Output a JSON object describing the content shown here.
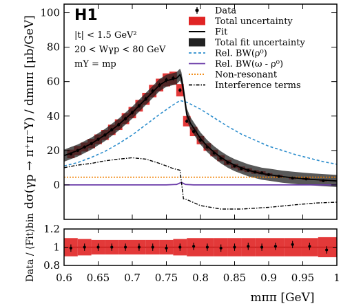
{
  "colors": {
    "data": "#000000",
    "total_uncertainty": "#e02424",
    "fit": "#000000",
    "fit_uncertainty": "#000000",
    "rho_bw": "#2a8ccc",
    "omega_rho_bw": "#6a3aa8",
    "non_resonant": "#f08000",
    "interference": "#000000"
  },
  "labels": {
    "experiment": "H1",
    "cut_t": "|t| < 1.5 GeV²",
    "cut_w": "20 < Wγp < 80 GeV",
    "cut_my": "mY = mp",
    "ylabel_top": "dσ(γp → π⁺π⁻Y) / dmππ  [μb/GeV]",
    "ylabel_bottom": "Data / ⟨Fit⟩bin",
    "xlabel": "mππ  [GeV]"
  },
  "chart_data": [
    {
      "type": "line",
      "panel": "main",
      "xlim": [
        0.6,
        1.0
      ],
      "ylim": [
        -20,
        105
      ],
      "xticks": [
        "0.6",
        "0.65",
        "0.7",
        "0.75",
        "0.8",
        "0.85",
        "0.9",
        "0.95",
        "1"
      ],
      "yticks": [
        "0",
        "20",
        "40",
        "60",
        "80",
        "100"
      ],
      "ytick_values": [
        0,
        20,
        40,
        60,
        80,
        100
      ],
      "legend_position": "top-right",
      "legend": [
        "Data",
        "Total uncertainty",
        "Fit",
        "Total fit uncertainty",
        "Rel. BW(ρ⁰)",
        "Rel. BW(ω - ρ⁰)",
        "Non-resonant",
        "Interference terms"
      ],
      "series": [
        {
          "name": "Data",
          "x": [
            0.61,
            0.62,
            0.63,
            0.64,
            0.65,
            0.66,
            0.67,
            0.68,
            0.69,
            0.7,
            0.71,
            0.72,
            0.73,
            0.74,
            0.75,
            0.76,
            0.77,
            0.78,
            0.79,
            0.8,
            0.81,
            0.82,
            0.83,
            0.84,
            0.85,
            0.86,
            0.87,
            0.88,
            0.89,
            0.9,
            0.915,
            0.935,
            0.955,
            0.98
          ],
          "y": [
            18,
            20,
            22,
            24,
            26.5,
            29,
            32,
            35,
            38.5,
            42,
            46,
            50,
            54.5,
            58,
            61,
            62,
            55,
            37,
            31,
            26,
            22,
            18.5,
            15.5,
            13,
            11,
            9.5,
            8.5,
            7.5,
            7,
            6,
            5,
            4,
            3.5,
            2.5
          ],
          "total_uncertainty": [
            2.5,
            2.6,
            2.6,
            2.7,
            2.8,
            2.9,
            3.0,
            3.1,
            3.2,
            3.3,
            3.4,
            3.5,
            3.6,
            3.7,
            3.8,
            3.8,
            3.6,
            3.0,
            2.7,
            2.4,
            2.2,
            1.9,
            1.7,
            1.5,
            1.3,
            1.2,
            1.1,
            1.0,
            0.9,
            0.8,
            0.8,
            0.7,
            0.7,
            0.6
          ]
        },
        {
          "name": "Fit",
          "x": [
            0.6,
            0.61,
            0.62,
            0.63,
            0.64,
            0.65,
            0.66,
            0.67,
            0.68,
            0.69,
            0.7,
            0.71,
            0.72,
            0.73,
            0.74,
            0.75,
            0.76,
            0.765,
            0.77,
            0.772,
            0.775,
            0.78,
            0.785,
            0.79,
            0.8,
            0.81,
            0.82,
            0.83,
            0.84,
            0.85,
            0.86,
            0.87,
            0.88,
            0.89,
            0.9,
            0.92,
            0.94,
            0.96,
            0.98,
            1.0
          ],
          "y": [
            17,
            18.5,
            20,
            22,
            24,
            26.5,
            29,
            32,
            35,
            38.5,
            42,
            46,
            50,
            54,
            58,
            60.5,
            61.5,
            62,
            64,
            62,
            55,
            41,
            36,
            33,
            27,
            22.5,
            19,
            16,
            13.5,
            11.5,
            10,
            8.5,
            7.5,
            6.5,
            6,
            4.8,
            4,
            3.3,
            2.8,
            2.3
          ],
          "band": 3.5
        },
        {
          "name": "Rel. BW(ρ⁰)",
          "x": [
            0.6,
            0.62,
            0.64,
            0.66,
            0.68,
            0.7,
            0.72,
            0.74,
            0.76,
            0.77,
            0.78,
            0.8,
            0.82,
            0.84,
            0.86,
            0.88,
            0.9,
            0.92,
            0.94,
            0.96,
            0.98,
            1.0
          ],
          "y": [
            11,
            13,
            16,
            19.5,
            24,
            29,
            35,
            41,
            46.5,
            49,
            48,
            44,
            39,
            34,
            29.5,
            26,
            22.5,
            20,
            17.5,
            15.5,
            13.5,
            12
          ]
        },
        {
          "name": "Rel. BW(ω - ρ⁰)",
          "x": [
            0.6,
            0.75,
            0.765,
            0.772,
            0.778,
            0.79,
            1.0
          ],
          "y": [
            0,
            0,
            0.3,
            1.5,
            0.3,
            0,
            0
          ]
        },
        {
          "name": "Non-resonant",
          "x": [
            0.6,
            1.0
          ],
          "y": [
            4.5,
            4.5
          ]
        },
        {
          "name": "Interference terms",
          "x": [
            0.6,
            0.62,
            0.64,
            0.66,
            0.68,
            0.7,
            0.72,
            0.74,
            0.76,
            0.77,
            0.772,
            0.775,
            0.78,
            0.8,
            0.83,
            0.86,
            0.9,
            0.94,
            0.97,
            1.0
          ],
          "y": [
            10,
            11.5,
            12.5,
            14,
            15,
            15.8,
            15,
            12.5,
            9.5,
            8.5,
            2,
            -8,
            -8.5,
            -12,
            -14,
            -14,
            -13,
            -11.5,
            -10.5,
            -10
          ]
        }
      ]
    },
    {
      "type": "scatter",
      "panel": "ratio",
      "xlim": [
        0.6,
        1.0
      ],
      "ylim": [
        0.8,
        1.2
      ],
      "xticks": [
        "0.6",
        "0.65",
        "0.7",
        "0.75",
        "0.8",
        "0.85",
        "0.9",
        "0.95",
        "1"
      ],
      "yticks": [
        "0.8",
        "1",
        "1.2"
      ],
      "ytick_values": [
        0.8,
        1.0,
        1.2
      ],
      "series": [
        {
          "name": "Data / Fit",
          "x": [
            0.61,
            0.63,
            0.65,
            0.67,
            0.69,
            0.71,
            0.73,
            0.75,
            0.77,
            0.79,
            0.81,
            0.83,
            0.85,
            0.87,
            0.89,
            0.91,
            0.935,
            0.96,
            0.985
          ],
          "y": [
            0.99,
            1.0,
            1.0,
            1.0,
            1.0,
            1.0,
            1.0,
            0.99,
            1.0,
            1.01,
            1.0,
            0.99,
            1.0,
            1.01,
            1.0,
            1.01,
            1.03,
            1.01,
            0.97
          ],
          "uncertainty": [
            0.1,
            0.09,
            0.08,
            0.08,
            0.08,
            0.08,
            0.08,
            0.08,
            0.09,
            0.1,
            0.1,
            0.1,
            0.1,
            0.1,
            0.1,
            0.1,
            0.1,
            0.1,
            0.11
          ]
        }
      ]
    }
  ]
}
